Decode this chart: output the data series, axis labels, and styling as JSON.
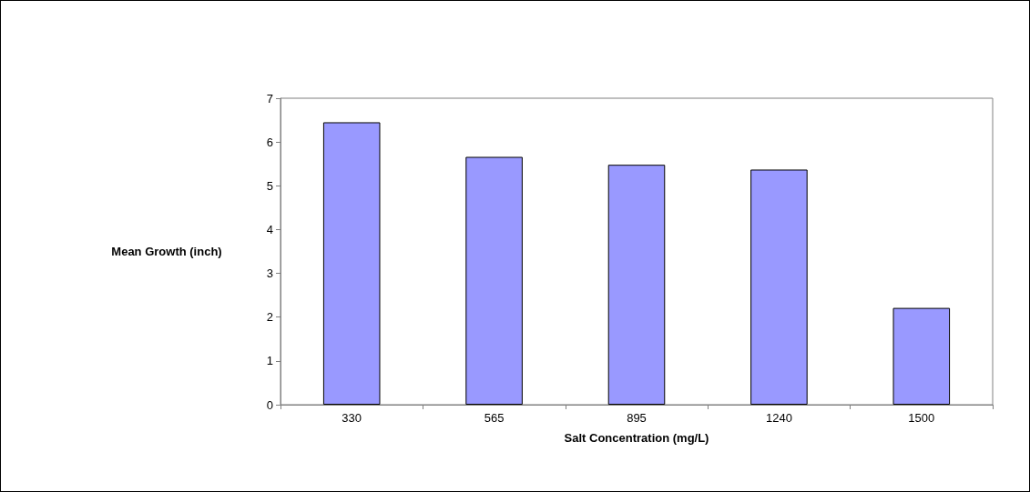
{
  "chart_data": {
    "type": "bar",
    "xlabel": "Salt Concentration (mg/L)",
    "ylabel": "Mean Growth (inch)",
    "categories": [
      "330",
      "565",
      "895",
      "1240",
      "1500"
    ],
    "values": [
      6.45,
      5.66,
      5.48,
      5.37,
      2.21
    ],
    "color": "#9999ff",
    "ylim": [
      0,
      7
    ],
    "yticks": [
      0,
      1,
      2,
      3,
      4,
      5,
      6,
      7
    ],
    "grid": false
  }
}
